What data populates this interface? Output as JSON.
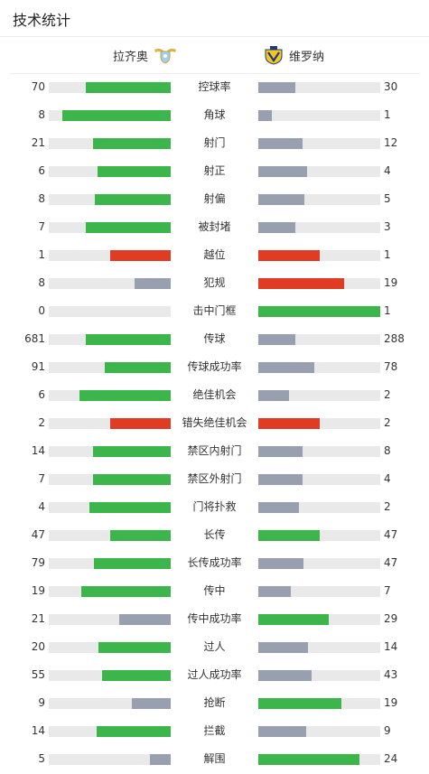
{
  "header": {
    "title": "技术统计"
  },
  "teams": {
    "home": "拉齐奥",
    "away": "维罗纳"
  },
  "colors": {
    "green": "#3cb54a",
    "red": "#e03c24",
    "gray": "#98a0b0",
    "track": "#e9e9e9"
  },
  "stats": [
    {
      "label": "控球率",
      "home": "70",
      "away": "30",
      "hf": 0.7,
      "af": 0.3,
      "hc": "green",
      "ac": "gray"
    },
    {
      "label": "角球",
      "home": "8",
      "away": "1",
      "hf": 0.89,
      "af": 0.11,
      "hc": "green",
      "ac": "gray"
    },
    {
      "label": "射门",
      "home": "21",
      "away": "12",
      "hf": 0.64,
      "af": 0.36,
      "hc": "green",
      "ac": "gray"
    },
    {
      "label": "射正",
      "home": "6",
      "away": "4",
      "hf": 0.6,
      "af": 0.4,
      "hc": "green",
      "ac": "gray"
    },
    {
      "label": "射偏",
      "home": "8",
      "away": "5",
      "hf": 0.62,
      "af": 0.38,
      "hc": "green",
      "ac": "gray"
    },
    {
      "label": "被封堵",
      "home": "7",
      "away": "3",
      "hf": 0.7,
      "af": 0.3,
      "hc": "green",
      "ac": "gray"
    },
    {
      "label": "越位",
      "home": "1",
      "away": "1",
      "hf": 0.5,
      "af": 0.5,
      "hc": "red",
      "ac": "red"
    },
    {
      "label": "犯规",
      "home": "8",
      "away": "19",
      "hf": 0.3,
      "af": 0.7,
      "hc": "gray",
      "ac": "red"
    },
    {
      "label": "击中门框",
      "home": "0",
      "away": "1",
      "hf": 0.0,
      "af": 1.0,
      "hc": "gray",
      "ac": "green"
    },
    {
      "label": "传球",
      "home": "681",
      "away": "288",
      "hf": 0.7,
      "af": 0.3,
      "hc": "green",
      "ac": "gray"
    },
    {
      "label": "传球成功率",
      "home": "91",
      "away": "78",
      "hf": 0.54,
      "af": 0.46,
      "hc": "green",
      "ac": "gray"
    },
    {
      "label": "绝佳机会",
      "home": "6",
      "away": "2",
      "hf": 0.75,
      "af": 0.25,
      "hc": "green",
      "ac": "gray"
    },
    {
      "label": "错失绝佳机会",
      "home": "2",
      "away": "2",
      "hf": 0.5,
      "af": 0.5,
      "hc": "red",
      "ac": "red"
    },
    {
      "label": "禁区内射门",
      "home": "14",
      "away": "8",
      "hf": 0.64,
      "af": 0.36,
      "hc": "green",
      "ac": "gray"
    },
    {
      "label": "禁区外射门",
      "home": "7",
      "away": "4",
      "hf": 0.64,
      "af": 0.36,
      "hc": "green",
      "ac": "gray"
    },
    {
      "label": "门将扑救",
      "home": "4",
      "away": "2",
      "hf": 0.67,
      "af": 0.33,
      "hc": "green",
      "ac": "gray"
    },
    {
      "label": "长传",
      "home": "47",
      "away": "47",
      "hf": 0.5,
      "af": 0.5,
      "hc": "green",
      "ac": "green"
    },
    {
      "label": "长传成功率",
      "home": "79",
      "away": "47",
      "hf": 0.63,
      "af": 0.37,
      "hc": "green",
      "ac": "gray"
    },
    {
      "label": "传中",
      "home": "19",
      "away": "7",
      "hf": 0.73,
      "af": 0.27,
      "hc": "green",
      "ac": "gray"
    },
    {
      "label": "传中成功率",
      "home": "21",
      "away": "29",
      "hf": 0.42,
      "af": 0.58,
      "hc": "gray",
      "ac": "green"
    },
    {
      "label": "过人",
      "home": "20",
      "away": "14",
      "hf": 0.59,
      "af": 0.41,
      "hc": "green",
      "ac": "gray"
    },
    {
      "label": "过人成功率",
      "home": "55",
      "away": "43",
      "hf": 0.56,
      "af": 0.44,
      "hc": "green",
      "ac": "gray"
    },
    {
      "label": "抢断",
      "home": "9",
      "away": "19",
      "hf": 0.32,
      "af": 0.68,
      "hc": "gray",
      "ac": "green"
    },
    {
      "label": "拦截",
      "home": "14",
      "away": "9",
      "hf": 0.61,
      "af": 0.39,
      "hc": "green",
      "ac": "gray"
    },
    {
      "label": "解围",
      "home": "5",
      "away": "24",
      "hf": 0.17,
      "af": 0.83,
      "hc": "gray",
      "ac": "green"
    }
  ]
}
